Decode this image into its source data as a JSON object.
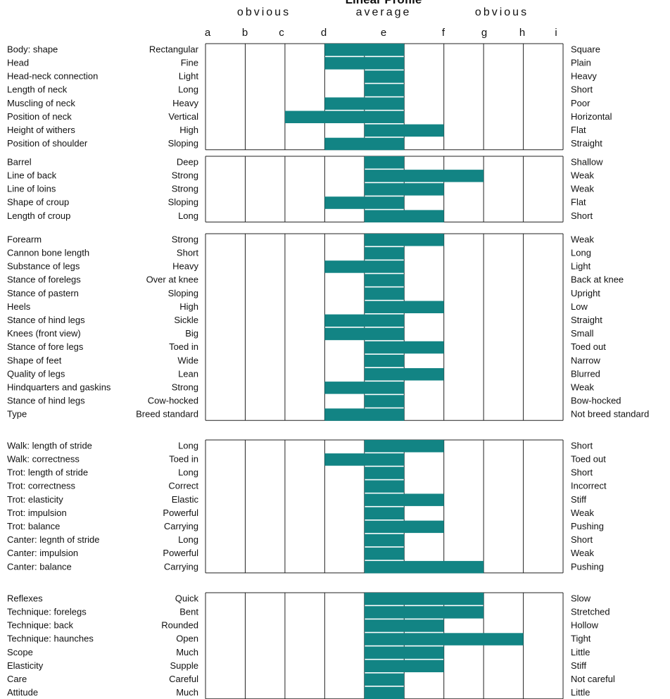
{
  "title": "Linear Profile",
  "scale_labels": [
    "obvious",
    "average",
    "obvious"
  ],
  "letters": [
    "a",
    "b",
    "c",
    "d",
    "e",
    "f",
    "g",
    "h",
    "i"
  ],
  "groups": [
    {
      "rows": [
        {
          "trait": "Body: shape",
          "left": "Rectangular",
          "right": "Square",
          "bar": [
            3,
            5
          ]
        },
        {
          "trait": "Head",
          "left": "Fine",
          "right": "Plain",
          "bar": [
            3,
            5
          ]
        },
        {
          "trait": "Head-neck connection",
          "left": "Light",
          "right": "Heavy",
          "bar": [
            4,
            5
          ]
        },
        {
          "trait": "Length of neck",
          "left": "Long",
          "right": "Short",
          "bar": [
            4,
            5
          ]
        },
        {
          "trait": "Muscling of neck",
          "left": "Heavy",
          "right": "Poor",
          "bar": [
            3,
            5
          ]
        },
        {
          "trait": "Position of neck",
          "left": "Vertical",
          "right": "Horizontal",
          "bar": [
            2,
            5
          ]
        },
        {
          "trait": "Height of withers",
          "left": "High",
          "right": "Flat",
          "bar": [
            4,
            6
          ]
        },
        {
          "trait": "Position of shoulder",
          "left": "Sloping",
          "right": "Straight",
          "bar": [
            3,
            5
          ]
        }
      ]
    },
    {
      "rows": [
        {
          "trait": "Barrel",
          "left": "Deep",
          "right": "Shallow",
          "bar": [
            4,
            5
          ]
        },
        {
          "trait": "Line of back",
          "left": "Strong",
          "right": "Weak",
          "bar": [
            4,
            7
          ]
        },
        {
          "trait": "Line of loins",
          "left": "Strong",
          "right": "Weak",
          "bar": [
            4,
            6
          ]
        },
        {
          "trait": "Shape of croup",
          "left": "Sloping",
          "right": "Flat",
          "bar": [
            3,
            5
          ]
        },
        {
          "trait": "Length of croup",
          "left": "Long",
          "right": "Short",
          "bar": [
            4,
            6
          ]
        }
      ]
    },
    {
      "rows": [
        {
          "trait": "Forearm",
          "left": "Strong",
          "right": "Weak",
          "bar": [
            4,
            6
          ]
        },
        {
          "trait": "Cannon bone length",
          "left": "Short",
          "right": "Long",
          "bar": [
            4,
            5
          ]
        },
        {
          "trait": "Substance of legs",
          "left": "Heavy",
          "right": "Light",
          "bar": [
            3,
            5
          ]
        },
        {
          "trait": "Stance of forelegs",
          "left": "Over at knee",
          "right": "Back at knee",
          "bar": [
            4,
            5
          ]
        },
        {
          "trait": "Stance of pastern",
          "left": "Sloping",
          "right": "Upright",
          "bar": [
            4,
            5
          ]
        },
        {
          "trait": "Heels",
          "left": "High",
          "right": "Low",
          "bar": [
            4,
            6
          ]
        },
        {
          "trait": "Stance of hind legs",
          "left": "Sickle",
          "right": "Straight",
          "bar": [
            3,
            5
          ]
        },
        {
          "trait": "Knees (front view)",
          "left": "Big",
          "right": "Small",
          "bar": [
            3,
            5
          ]
        },
        {
          "trait": "Stance of fore legs",
          "left": "Toed in",
          "right": "Toed out",
          "bar": [
            4,
            6
          ]
        },
        {
          "trait": "Shape of feet",
          "left": "Wide",
          "right": "Narrow",
          "bar": [
            4,
            5
          ]
        },
        {
          "trait": "Quality of legs",
          "left": "Lean",
          "right": "Blurred",
          "bar": [
            4,
            6
          ]
        },
        {
          "trait": "Hindquarters and gaskins",
          "left": "Strong",
          "right": "Weak",
          "bar": [
            3,
            5
          ]
        },
        {
          "trait": "Stance of hind legs",
          "left": "Cow-hocked",
          "right": "Bow-hocked",
          "bar": [
            4,
            5
          ]
        },
        {
          "trait": "Type",
          "left": "Breed standard",
          "right": "Not breed standard",
          "bar": [
            3,
            5
          ]
        }
      ]
    },
    {
      "rows": [
        {
          "trait": "Walk: length of stride",
          "left": "Long",
          "right": "Short",
          "bar": [
            4,
            6
          ]
        },
        {
          "trait": "Walk: correctness",
          "left": "Toed in",
          "right": "Toed out",
          "bar": [
            3,
            5
          ]
        },
        {
          "trait": "Trot: length of stride",
          "left": "Long",
          "right": "Short",
          "bar": [
            4,
            5
          ]
        },
        {
          "trait": "Trot: correctness",
          "left": "Correct",
          "right": "Incorrect",
          "bar": [
            4,
            5
          ]
        },
        {
          "trait": "Trot: elasticity",
          "left": "Elastic",
          "right": "Stiff",
          "bar": [
            4,
            6
          ]
        },
        {
          "trait": "Trot: impulsion",
          "left": "Powerful",
          "right": "Weak",
          "bar": [
            4,
            5
          ]
        },
        {
          "trait": "Trot: balance",
          "left": "Carrying",
          "right": "Pushing",
          "bar": [
            4,
            6
          ]
        },
        {
          "trait": "Canter: legnth of stride",
          "left": "Long",
          "right": "Short",
          "bar": [
            4,
            5
          ]
        },
        {
          "trait": "Canter: impulsion",
          "left": "Powerful",
          "right": "Weak",
          "bar": [
            4,
            5
          ]
        },
        {
          "trait": "Canter: balance",
          "left": "Carrying",
          "right": "Pushing",
          "bar": [
            4,
            7
          ]
        }
      ]
    },
    {
      "rows": [
        {
          "trait": "Reflexes",
          "left": "Quick",
          "right": "Slow",
          "bar": [
            4,
            7
          ]
        },
        {
          "trait": "Technique: forelegs",
          "left": "Bent",
          "right": "Stretched",
          "bar": [
            4,
            7
          ]
        },
        {
          "trait": "Technique: back",
          "left": "Rounded",
          "right": "Hollow",
          "bar": [
            4,
            6
          ]
        },
        {
          "trait": "Technique: haunches",
          "left": "Open",
          "right": "Tight",
          "bar": [
            4,
            8
          ]
        },
        {
          "trait": "Scope",
          "left": "Much",
          "right": "Little",
          "bar": [
            4,
            6
          ]
        },
        {
          "trait": "Elasticity",
          "left": "Supple",
          "right": "Stiff",
          "bar": [
            4,
            6
          ]
        },
        {
          "trait": "Care",
          "left": "Careful",
          "right": "Not careful",
          "bar": [
            4,
            5
          ]
        },
        {
          "trait": "Attitude",
          "left": "Much",
          "right": "Little",
          "bar": [
            4,
            5
          ]
        }
      ]
    }
  ]
}
